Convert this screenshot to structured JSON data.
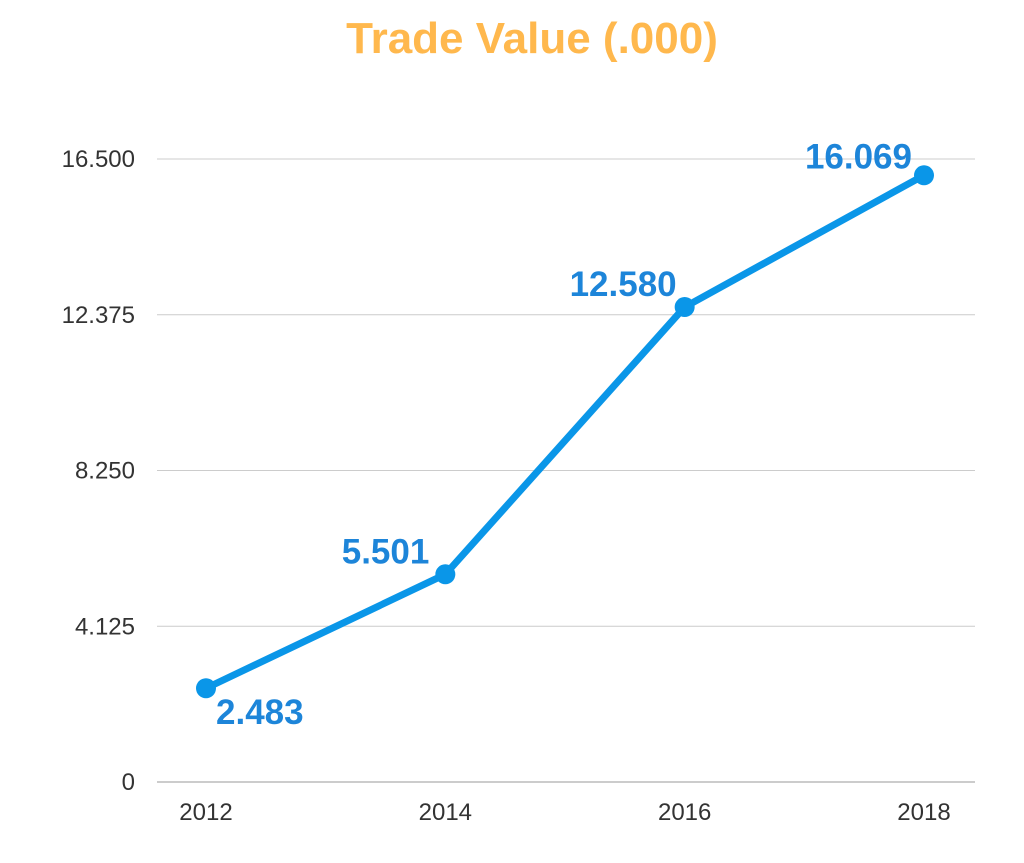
{
  "chart_data": {
    "type": "line",
    "title": "Trade Value (.000)",
    "xlabel": "",
    "ylabel": "",
    "categories": [
      "2012",
      "2014",
      "2016",
      "2018"
    ],
    "series": [
      {
        "values": [
          2.483,
          5.501,
          12.58,
          16.069
        ],
        "data_labels": [
          "2.483",
          "5.501",
          "12.580",
          "16.069"
        ]
      }
    ],
    "ylim": [
      0,
      16.5
    ],
    "yticks": [
      0,
      4.125,
      8.25,
      12.375,
      16.5
    ],
    "ytick_labels": [
      "0",
      "4.125",
      "8.250",
      "12.375",
      "16.500"
    ],
    "grid": true,
    "legend": "none"
  },
  "colors": {
    "title": "#ffb84d",
    "line": "#0a96e8",
    "data_label": "#1d85d9",
    "grid": "#cccccc",
    "axis": "#bbbbbb",
    "tick_text": "#333333"
  }
}
